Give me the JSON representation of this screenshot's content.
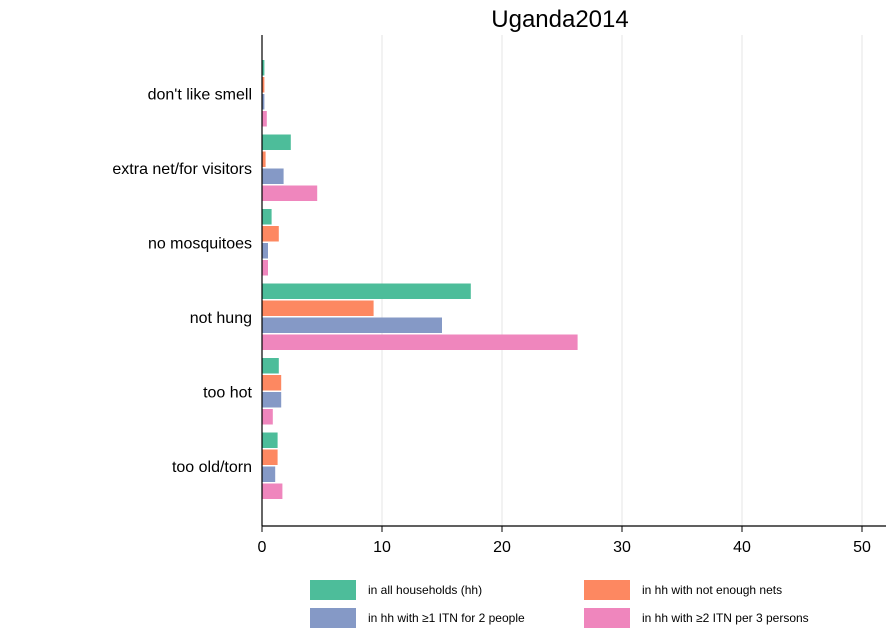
{
  "chart_data": {
    "type": "bar",
    "orientation": "horizontal",
    "title": "Uganda2014",
    "xlabel": "",
    "ylabel": "",
    "categories": [
      "don't like smell",
      "extra net/for visitors",
      "no mosquitoes",
      "not hung",
      "too hot",
      "too old/torn"
    ],
    "series": [
      {
        "name": "in all households (hh)",
        "color": "#4dbd9a",
        "values": [
          0.2,
          2.4,
          0.8,
          17.4,
          1.4,
          1.3
        ]
      },
      {
        "name": "in hh with not enough nets",
        "color": "#fd8861",
        "values": [
          0.2,
          0.3,
          1.4,
          9.3,
          1.6,
          1.3
        ]
      },
      {
        "name": "in hh with ≥1 ITN for 2 people",
        "color": "#8599c6",
        "values": [
          0.2,
          1.8,
          0.5,
          15.0,
          1.6,
          1.1
        ]
      },
      {
        "name": "in hh with ≥2 ITN per 3 persons",
        "color": "#ef86bd",
        "values": [
          0.4,
          4.6,
          0.5,
          26.3,
          0.9,
          1.7
        ]
      }
    ],
    "xlim": [
      0,
      52
    ],
    "xticks": [
      0,
      10,
      20,
      30,
      40,
      50
    ],
    "grid": true,
    "legend_position": "bottom"
  }
}
